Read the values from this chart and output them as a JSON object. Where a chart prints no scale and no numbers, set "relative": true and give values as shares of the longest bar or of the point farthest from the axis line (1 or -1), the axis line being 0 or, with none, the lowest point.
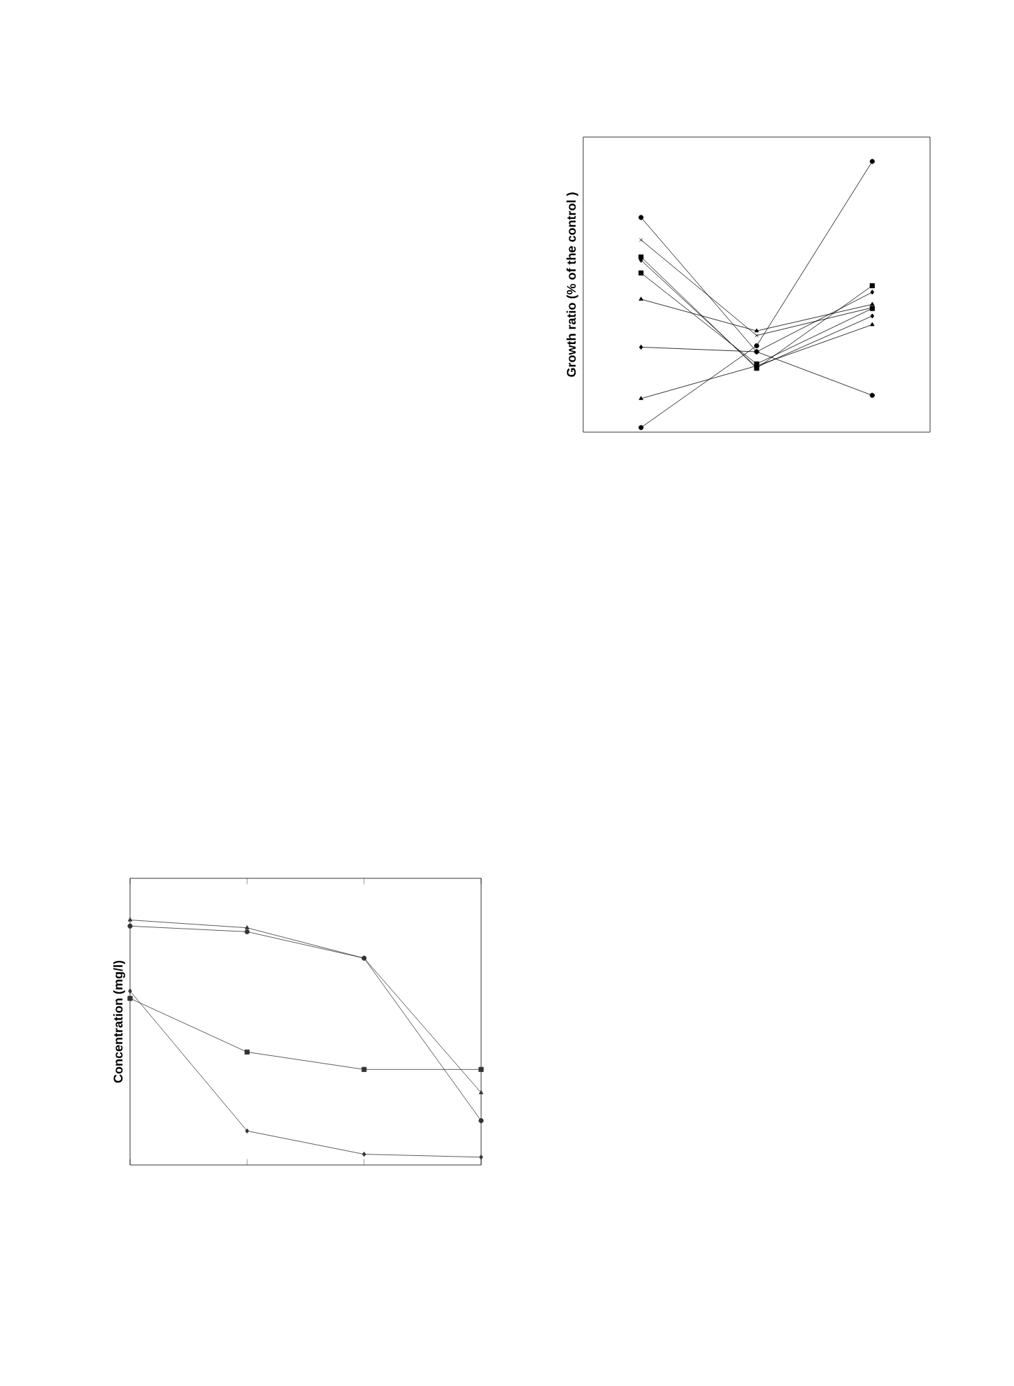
{
  "chart_data": [
    {
      "type": "line",
      "ylabel": "Growth ratio (% of the control )",
      "relative": true,
      "categories": [
        null,
        null,
        null
      ],
      "series": [
        {
          "color": "#000000",
          "marker": "square",
          "values": [
            0.647,
            0.236,
            0.541
          ]
        },
        {
          "color": "#000000",
          "marker": "circle",
          "values": [
            0.793,
            0.297,
            0.136
          ]
        },
        {
          "color": "#000000",
          "marker": "triangle",
          "values": [
            0.124,
            0.245,
            0.397
          ]
        },
        {
          "color": "#000000",
          "marker": "diamond",
          "values": [
            0.635,
            0.24,
            0.429
          ]
        },
        {
          "color": "#000000",
          "marker": "square",
          "values": [
            0.588,
            0.252,
            0.457
          ]
        },
        {
          "color": "#000000",
          "marker": "circle",
          "values": [
            0.017,
            0.319,
            1.0
          ]
        },
        {
          "color": "#000000",
          "marker": "triangle",
          "values": [
            0.491,
            0.374,
            0.472
          ]
        },
        {
          "color": "#000000",
          "marker": "diamond",
          "values": [
            0.314,
            0.297,
            0.517
          ]
        },
        {
          "color": "#000000",
          "marker": "cross",
          "values": [
            0.71,
            0.357,
            0.46
          ]
        }
      ]
    },
    {
      "type": "line",
      "ylabel": "Concentration (mg/l)",
      "relative": true,
      "categories": [
        null,
        null,
        null,
        null
      ],
      "series": [
        {
          "color": "#333333",
          "marker": "square",
          "values": [
            0.68,
            0.461,
            0.39,
            0.39
          ]
        },
        {
          "color": "#333333",
          "marker": "circle",
          "values": [
            0.975,
            0.952,
            0.844,
            0.181
          ]
        },
        {
          "color": "#333333",
          "marker": "triangle",
          "values": [
            1.0,
            0.968,
            0.844,
            0.295
          ]
        },
        {
          "color": "#333333",
          "marker": "diamond",
          "values": [
            0.71,
            0.139,
            0.044,
            0.032
          ]
        }
      ]
    }
  ]
}
